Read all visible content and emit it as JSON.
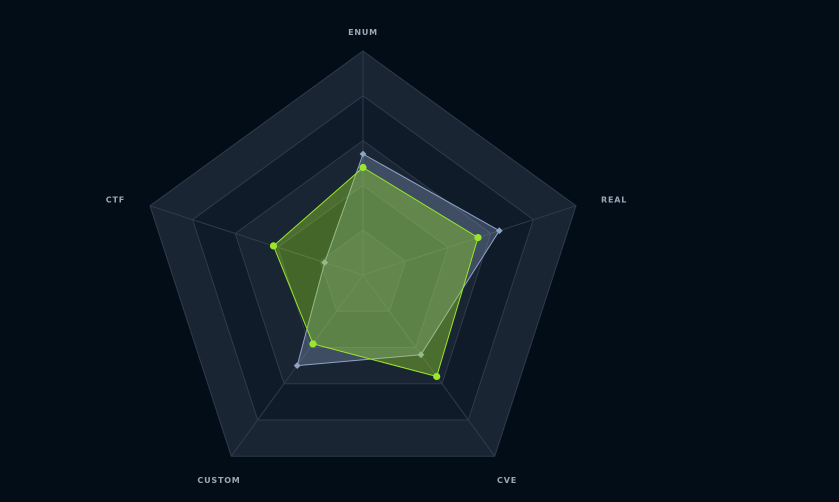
{
  "chart_data": {
    "type": "radar",
    "axes": [
      "ENUM",
      "REAL",
      "CVE",
      "CUSTOM",
      "CTF"
    ],
    "rlim": [
      0,
      5
    ],
    "levels": 5,
    "grid": true,
    "series": [
      {
        "values": [
          2.7,
          3.2,
          2.2,
          2.5,
          0.9
        ],
        "color": "#8fa3c6",
        "marker": "diamond"
      },
      {
        "values": [
          2.4,
          2.7,
          2.8,
          1.9,
          2.1
        ],
        "color": "#9ae62a",
        "marker": "circle"
      }
    ]
  },
  "colors": {
    "background": "#020d18",
    "grid_dark": "#0f1b29",
    "grid_light": "#1a2533",
    "grid_line": "#2f3b4b"
  }
}
